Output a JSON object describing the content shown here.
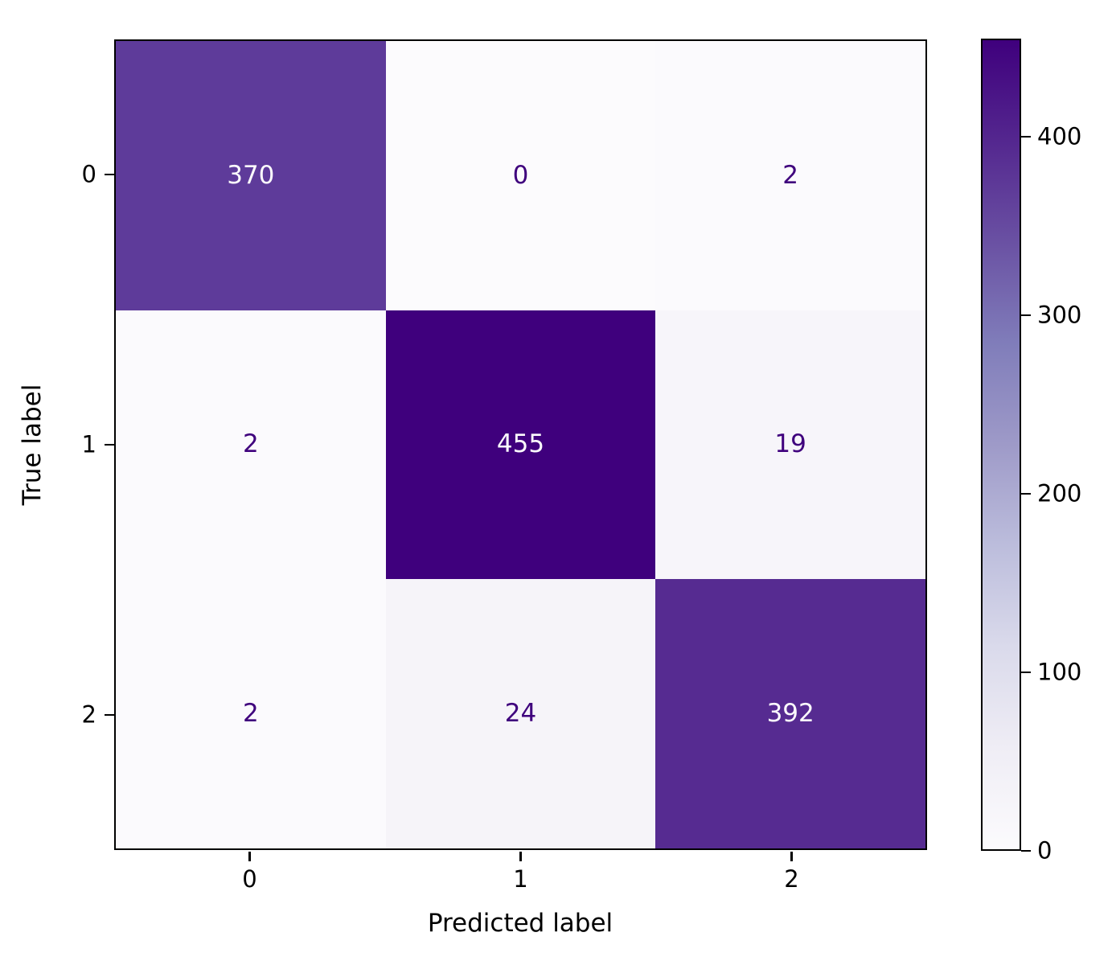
{
  "chart_data": {
    "type": "heatmap",
    "subtype": "confusion-matrix",
    "title": "",
    "xlabel": "Predicted label",
    "ylabel": "True label",
    "x_tick_labels": [
      "0",
      "1",
      "2"
    ],
    "y_tick_labels": [
      "0",
      "1",
      "2"
    ],
    "matrix": [
      [
        370,
        0,
        2
      ],
      [
        2,
        455,
        19
      ],
      [
        2,
        24,
        392
      ]
    ],
    "cells": [
      {
        "value": "370",
        "bg": "#5e3b9a",
        "fg": "#fcfbfd"
      },
      {
        "value": "0",
        "bg": "#fcfbfd",
        "fg": "#3f007d"
      },
      {
        "value": "2",
        "bg": "#fbfafd",
        "fg": "#3f007d"
      },
      {
        "value": "2",
        "bg": "#fbfafd",
        "fg": "#3f007d"
      },
      {
        "value": "455",
        "bg": "#3f007d",
        "fg": "#fcfbfd"
      },
      {
        "value": "19",
        "bg": "#f7f5fa",
        "fg": "#3f007d"
      },
      {
        "value": "2",
        "bg": "#fbfafd",
        "fg": "#3f007d"
      },
      {
        "value": "24",
        "bg": "#f6f4f9",
        "fg": "#3f007d"
      },
      {
        "value": "392",
        "bg": "#562b91",
        "fg": "#fcfbfd"
      }
    ],
    "vmin": 0,
    "vmax": 455,
    "colormap": "Purples",
    "colormap_stops": [
      "#fcfbfd",
      "#efedf5",
      "#dadaeb",
      "#bcbddc",
      "#9e9ac8",
      "#807dba",
      "#6a51a3",
      "#54278f",
      "#3f007d"
    ],
    "colorbar_ticks": [
      "0",
      "100",
      "200",
      "300",
      "400"
    ],
    "grid": false,
    "legend": "colorbar-right",
    "axis_color": "#000000"
  }
}
